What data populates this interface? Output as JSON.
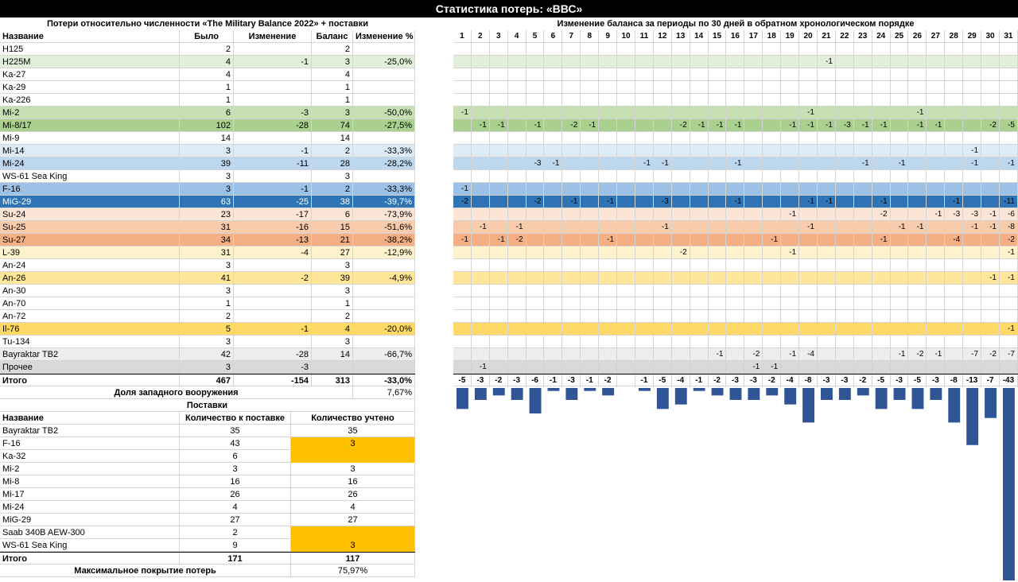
{
  "title": "Статистика потерь: «ВВС»",
  "left_header": "Потери относительно численности «The Military Balance 2022» + поставки",
  "right_header": "Изменение баланса за периоды по 30 дней в обратном хронологическом порядке",
  "columns": [
    "Название",
    "Было",
    "Изменение",
    "Баланс",
    "Изменение %"
  ],
  "period_numbers": [
    "1",
    "2",
    "3",
    "4",
    "5",
    "6",
    "7",
    "8",
    "9",
    "10",
    "11",
    "12",
    "13",
    "14",
    "15",
    "16",
    "17",
    "18",
    "19",
    "20",
    "21",
    "22",
    "23",
    "24",
    "25",
    "26",
    "27",
    "28",
    "29",
    "30",
    "31"
  ],
  "rows": [
    {
      "name": "H125",
      "was": "2",
      "change": "",
      "balance": "2",
      "pct": "",
      "color": "#ffffff",
      "periods": [
        "",
        "",
        "",
        "",
        "",
        "",
        "",
        "",
        "",
        "",
        "",
        "",
        "",
        "",
        "",
        "",
        "",
        "",
        "",
        "",
        "",
        "",
        "",
        "",
        "",
        "",
        "",
        "",
        "",
        "",
        ""
      ]
    },
    {
      "name": "H225M",
      "was": "4",
      "change": "-1",
      "balance": "3",
      "pct": "-25,0%",
      "color": "#e2efda",
      "periods": [
        "",
        "",
        "",
        "",
        "",
        "",
        "",
        "",
        "",
        "",
        "",
        "",
        "",
        "",
        "",
        "",
        "",
        "",
        "",
        "",
        "-1",
        "",
        "",
        "",
        "",
        "",
        "",
        "",
        "",
        "",
        ""
      ]
    },
    {
      "name": "Ka-27",
      "was": "4",
      "change": "",
      "balance": "4",
      "pct": "",
      "color": "#ffffff",
      "periods": [
        "",
        "",
        "",
        "",
        "",
        "",
        "",
        "",
        "",
        "",
        "",
        "",
        "",
        "",
        "",
        "",
        "",
        "",
        "",
        "",
        "",
        "",
        "",
        "",
        "",
        "",
        "",
        "",
        "",
        "",
        ""
      ]
    },
    {
      "name": "Ka-29",
      "was": "1",
      "change": "",
      "balance": "1",
      "pct": "",
      "color": "#ffffff",
      "periods": [
        "",
        "",
        "",
        "",
        "",
        "",
        "",
        "",
        "",
        "",
        "",
        "",
        "",
        "",
        "",
        "",
        "",
        "",
        "",
        "",
        "",
        "",
        "",
        "",
        "",
        "",
        "",
        "",
        "",
        "",
        ""
      ]
    },
    {
      "name": "Ka-226",
      "was": "1",
      "change": "",
      "balance": "1",
      "pct": "",
      "color": "#ffffff",
      "periods": [
        "",
        "",
        "",
        "",
        "",
        "",
        "",
        "",
        "",
        "",
        "",
        "",
        "",
        "",
        "",
        "",
        "",
        "",
        "",
        "",
        "",
        "",
        "",
        "",
        "",
        "",
        "",
        "",
        "",
        "",
        ""
      ]
    },
    {
      "name": "Mi-2",
      "was": "6",
      "change": "-3",
      "balance": "3",
      "pct": "-50,0%",
      "color": "#c6e0b4",
      "periods": [
        "-1",
        "",
        "",
        "",
        "",
        "",
        "",
        "",
        "",
        "",
        "",
        "",
        "",
        "",
        "",
        "",
        "",
        "",
        "",
        "-1",
        "",
        "",
        "",
        "",
        "",
        "-1",
        "",
        "",
        "",
        "",
        ""
      ]
    },
    {
      "name": "Mi-8/17",
      "was": "102",
      "change": "-28",
      "balance": "74",
      "pct": "-27,5%",
      "color": "#a9d08e",
      "periods": [
        "",
        "-1",
        "-1",
        "",
        "-1",
        "",
        "-2",
        "-1",
        "",
        "",
        "",
        "",
        "-2",
        "-1",
        "-1",
        "-1",
        "",
        "",
        "-1",
        "-1",
        "-1",
        "-3",
        "-1",
        "-1",
        "",
        "-1",
        "-1",
        "",
        "",
        "-2",
        "-5"
      ]
    },
    {
      "name": "Mi-9",
      "was": "14",
      "change": "",
      "balance": "14",
      "pct": "",
      "color": "#ffffff",
      "periods": [
        "",
        "",
        "",
        "",
        "",
        "",
        "",
        "",
        "",
        "",
        "",
        "",
        "",
        "",
        "",
        "",
        "",
        "",
        "",
        "",
        "",
        "",
        "",
        "",
        "",
        "",
        "",
        "",
        "",
        "",
        ""
      ]
    },
    {
      "name": "Mi-14",
      "was": "3",
      "change": "-1",
      "balance": "2",
      "pct": "-33,3%",
      "color": "#ddebf7",
      "periods": [
        "",
        "",
        "",
        "",
        "",
        "",
        "",
        "",
        "",
        "",
        "",
        "",
        "",
        "",
        "",
        "",
        "",
        "",
        "",
        "",
        "",
        "",
        "",
        "",
        "",
        "",
        "",
        "",
        "-1",
        "",
        ""
      ]
    },
    {
      "name": "Mi-24",
      "was": "39",
      "change": "-11",
      "balance": "28",
      "pct": "-28,2%",
      "color": "#bdd7ee",
      "periods": [
        "",
        "",
        "",
        "",
        "-3",
        "-1",
        "",
        "",
        "",
        "",
        "-1",
        "-1",
        "",
        "",
        "",
        "-1",
        "",
        "",
        "",
        "",
        "",
        "",
        "-1",
        "",
        "-1",
        "",
        "",
        "",
        "-1",
        "",
        "-1"
      ]
    },
    {
      "name": "WS-61 Sea King",
      "was": "3",
      "change": "",
      "balance": "3",
      "pct": "",
      "color": "#ffffff",
      "periods": [
        "",
        "",
        "",
        "",
        "",
        "",
        "",
        "",
        "",
        "",
        "",
        "",
        "",
        "",
        "",
        "",
        "",
        "",
        "",
        "",
        "",
        "",
        "",
        "",
        "",
        "",
        "",
        "",
        "",
        "",
        ""
      ]
    },
    {
      "name": "F-16",
      "was": "3",
      "change": "-1",
      "balance": "2",
      "pct": "-33,3%",
      "color": "#9bc2e6",
      "periods": [
        "-1",
        "",
        "",
        "",
        "",
        "",
        "",
        "",
        "",
        "",
        "",
        "",
        "",
        "",
        "",
        "",
        "",
        "",
        "",
        "",
        "",
        "",
        "",
        "",
        "",
        "",
        "",
        "",
        "",
        "",
        ""
      ]
    },
    {
      "name": "MiG-29",
      "was": "63",
      "change": "-25",
      "balance": "38",
      "pct": "-39,7%",
      "color": "#2f75b5",
      "periods": [
        "-2",
        "",
        "",
        "",
        "-2",
        "",
        "-1",
        "",
        "-1",
        "",
        "",
        "-3",
        "",
        "",
        "",
        "-1",
        "",
        "",
        "",
        "-1",
        "-1",
        "",
        "",
        "-1",
        "",
        "",
        "",
        "-1",
        "",
        "",
        "-11"
      ]
    },
    {
      "name": "Su-24",
      "was": "23",
      "change": "-17",
      "balance": "6",
      "pct": "-73,9%",
      "color": "#fce4d6",
      "periods": [
        "",
        "",
        "",
        "",
        "",
        "",
        "",
        "",
        "",
        "",
        "",
        "",
        "",
        "",
        "",
        "",
        "",
        "",
        "-1",
        "",
        "",
        "",
        "",
        "-2",
        "",
        "",
        "-1",
        "-3",
        "-3",
        "-1",
        "-6"
      ]
    },
    {
      "name": "Su-25",
      "was": "31",
      "change": "-16",
      "balance": "15",
      "pct": "-51,6%",
      "color": "#f8cbad",
      "periods": [
        "",
        "-1",
        "",
        "-1",
        "",
        "",
        "",
        "",
        "",
        "",
        "",
        "-1",
        "",
        "",
        "",
        "",
        "",
        "",
        "",
        "-1",
        "",
        "",
        "",
        "",
        "-1",
        "-1",
        "",
        "",
        "-1",
        "-1",
        "-8"
      ]
    },
    {
      "name": "Su-27",
      "was": "34",
      "change": "-13",
      "balance": "21",
      "pct": "-38,2%",
      "color": "#f4b084",
      "periods": [
        "-1",
        "",
        "-1",
        "-2",
        "",
        "",
        "",
        "",
        "-1",
        "",
        "",
        "",
        "",
        "",
        "",
        "",
        "",
        "-1",
        "",
        "",
        "",
        "",
        "",
        "-1",
        "",
        "",
        "",
        "-4",
        "",
        "",
        "-2"
      ]
    },
    {
      "name": "L-39",
      "was": "31",
      "change": "-4",
      "balance": "27",
      "pct": "-12,9%",
      "color": "#fff2cc",
      "periods": [
        "",
        "",
        "",
        "",
        "",
        "",
        "",
        "",
        "",
        "",
        "",
        "",
        "-2",
        "",
        "",
        "",
        "",
        "",
        "-1",
        "",
        "",
        "",
        "",
        "",
        "",
        "",
        "",
        "",
        "",
        "",
        "-1"
      ]
    },
    {
      "name": "An-24",
      "was": "3",
      "change": "",
      "balance": "3",
      "pct": "",
      "color": "#ffffff",
      "periods": [
        "",
        "",
        "",
        "",
        "",
        "",
        "",
        "",
        "",
        "",
        "",
        "",
        "",
        "",
        "",
        "",
        "",
        "",
        "",
        "",
        "",
        "",
        "",
        "",
        "",
        "",
        "",
        "",
        "",
        "",
        ""
      ]
    },
    {
      "name": "An-26",
      "was": "41",
      "change": "-2",
      "balance": "39",
      "pct": "-4,9%",
      "color": "#ffe699",
      "periods": [
        "",
        "",
        "",
        "",
        "",
        "",
        "",
        "",
        "",
        "",
        "",
        "",
        "",
        "",
        "",
        "",
        "",
        "",
        "",
        "",
        "",
        "",
        "",
        "",
        "",
        "",
        "",
        "",
        "",
        "-1",
        "-1"
      ]
    },
    {
      "name": "An-30",
      "was": "3",
      "change": "",
      "balance": "3",
      "pct": "",
      "color": "#ffffff",
      "periods": [
        "",
        "",
        "",
        "",
        "",
        "",
        "",
        "",
        "",
        "",
        "",
        "",
        "",
        "",
        "",
        "",
        "",
        "",
        "",
        "",
        "",
        "",
        "",
        "",
        "",
        "",
        "",
        "",
        "",
        "",
        ""
      ]
    },
    {
      "name": "An-70",
      "was": "1",
      "change": "",
      "balance": "1",
      "pct": "",
      "color": "#ffffff",
      "periods": [
        "",
        "",
        "",
        "",
        "",
        "",
        "",
        "",
        "",
        "",
        "",
        "",
        "",
        "",
        "",
        "",
        "",
        "",
        "",
        "",
        "",
        "",
        "",
        "",
        "",
        "",
        "",
        "",
        "",
        "",
        ""
      ]
    },
    {
      "name": "An-72",
      "was": "2",
      "change": "",
      "balance": "2",
      "pct": "",
      "color": "#ffffff",
      "periods": [
        "",
        "",
        "",
        "",
        "",
        "",
        "",
        "",
        "",
        "",
        "",
        "",
        "",
        "",
        "",
        "",
        "",
        "",
        "",
        "",
        "",
        "",
        "",
        "",
        "",
        "",
        "",
        "",
        "",
        "",
        ""
      ]
    },
    {
      "name": "Il-76",
      "was": "5",
      "change": "-1",
      "balance": "4",
      "pct": "-20,0%",
      "color": "#ffd966",
      "periods": [
        "",
        "",
        "",
        "",
        "",
        "",
        "",
        "",
        "",
        "",
        "",
        "",
        "",
        "",
        "",
        "",
        "",
        "",
        "",
        "",
        "",
        "",
        "",
        "",
        "",
        "",
        "",
        "",
        "",
        "",
        "-1"
      ]
    },
    {
      "name": "Tu-134",
      "was": "3",
      "change": "",
      "balance": "3",
      "pct": "",
      "color": "#ffffff",
      "periods": [
        "",
        "",
        "",
        "",
        "",
        "",
        "",
        "",
        "",
        "",
        "",
        "",
        "",
        "",
        "",
        "",
        "",
        "",
        "",
        "",
        "",
        "",
        "",
        "",
        "",
        "",
        "",
        "",
        "",
        "",
        ""
      ]
    },
    {
      "name": "Bayraktar TB2",
      "was": "42",
      "change": "-28",
      "balance": "14",
      "pct": "-66,7%",
      "color": "#ededed",
      "periods": [
        "",
        "",
        "",
        "",
        "",
        "",
        "",
        "",
        "",
        "",
        "",
        "",
        "",
        "",
        "-1",
        "",
        "-2",
        "",
        "-1",
        "-4",
        "",
        "",
        "",
        "",
        "-1",
        "-2",
        "-1",
        "",
        "-7",
        "-2",
        "-7"
      ]
    },
    {
      "name": "Прочее",
      "was": "3",
      "change": "-3",
      "balance": "",
      "pct": "",
      "color": "#d9d9d9",
      "periods": [
        "",
        "-1",
        "",
        "",
        "",
        "",
        "",
        "",
        "",
        "",
        "",
        "",
        "",
        "",
        "",
        "",
        "-1",
        "-1",
        "",
        "",
        "",
        "",
        "",
        "",
        "",
        "",
        "",
        "",
        "",
        "",
        ""
      ]
    }
  ],
  "total": {
    "label": "Итого",
    "was": "467",
    "change": "-154",
    "balance": "313",
    "pct": "-33,0%",
    "periods": [
      "-5",
      "-3",
      "-2",
      "-3",
      "-6",
      "-1",
      "-3",
      "-1",
      "-2",
      "",
      "-1",
      "-5",
      "-4",
      "-1",
      "-2",
      "-3",
      "-3",
      "-2",
      "-4",
      "-8",
      "-3",
      "-3",
      "-2",
      "-5",
      "-3",
      "-5",
      "-3",
      "-8",
      "-13",
      "-7",
      "-43"
    ]
  },
  "western_share": {
    "label": "Доля западного вооружения",
    "value": "7,67%"
  },
  "supplies": {
    "title": "Поставки",
    "columns": [
      "Название",
      "Количество к поставке",
      "Количество учтено"
    ],
    "rows": [
      {
        "name": "Bayraktar TB2",
        "qty": "35",
        "counted": "35",
        "hl": false
      },
      {
        "name": "F-16",
        "qty": "43",
        "counted": "3",
        "hl": true
      },
      {
        "name": "Ka-32",
        "qty": "6",
        "counted": "",
        "hl": true
      },
      {
        "name": "Mi-2",
        "qty": "3",
        "counted": "3",
        "hl": false
      },
      {
        "name": "Mi-8",
        "qty": "16",
        "counted": "16",
        "hl": false
      },
      {
        "name": "Mi-17",
        "qty": "26",
        "counted": "26",
        "hl": false
      },
      {
        "name": "Mi-24",
        "qty": "4",
        "counted": "4",
        "hl": false
      },
      {
        "name": "MiG-29",
        "qty": "27",
        "counted": "27",
        "hl": false
      },
      {
        "name": "Saab 340B AEW-300",
        "qty": "2",
        "counted": "",
        "hl": true
      },
      {
        "name": "WS-61 Sea King",
        "qty": "9",
        "counted": "3",
        "hl": true
      }
    ],
    "total": {
      "label": "Итого",
      "qty": "171",
      "counted": "117"
    },
    "coverage": {
      "label": "Максимальное покрытие потерь",
      "value": "75,97%"
    }
  },
  "chart_data": {
    "type": "bar",
    "categories": [
      "1",
      "2",
      "3",
      "4",
      "5",
      "6",
      "7",
      "8",
      "9",
      "10",
      "11",
      "12",
      "13",
      "14",
      "15",
      "16",
      "17",
      "18",
      "19",
      "20",
      "21",
      "22",
      "23",
      "24",
      "25",
      "26",
      "27",
      "28",
      "29",
      "30",
      "31"
    ],
    "values": [
      -5,
      -3,
      -2,
      -3,
      -6,
      -1,
      -3,
      -1,
      -2,
      0,
      -1,
      -5,
      -4,
      -1,
      -2,
      -3,
      -3,
      -2,
      -4,
      -8,
      -3,
      -3,
      -2,
      -5,
      -3,
      -5,
      -3,
      -8,
      -13,
      -7,
      -43
    ],
    "color": "#2f5597"
  },
  "colors": {
    "title_bg": "#000000",
    "highlight": "#ffc000",
    "bar": "#2f5597"
  }
}
